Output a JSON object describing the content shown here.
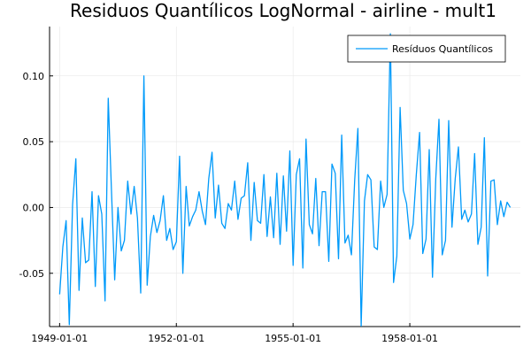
{
  "chart_data": {
    "type": "line",
    "title": "Residuos Quantílicos LogNormal - airline - mult1",
    "xlabel": "",
    "ylabel": "",
    "x_start": "1949-01",
    "x_ticks": [
      "1949-01-01",
      "1952-01-01",
      "1955-01-01",
      "1958-01-01"
    ],
    "y_ticks": [
      -0.05,
      0.0,
      0.05,
      0.1
    ],
    "y_tick_labels": [
      "-0.05",
      "0.00",
      "0.05",
      "0.10"
    ],
    "ylim": [
      -0.0905,
      0.1375
    ],
    "grid": true,
    "legend_position": "top-right",
    "series": [
      {
        "name": "Resíduos Quantílicos",
        "color": "#009AFA",
        "values": [
          -0.066,
          -0.03,
          -0.01,
          -0.089,
          0.002,
          0.037,
          -0.063,
          -0.008,
          -0.042,
          -0.04,
          0.012,
          -0.06,
          0.009,
          -0.005,
          -0.071,
          0.083,
          0.012,
          -0.055,
          0.0,
          -0.033,
          -0.025,
          0.02,
          -0.005,
          0.016,
          -0.008,
          -0.065,
          0.1,
          -0.059,
          -0.022,
          -0.006,
          -0.019,
          -0.01,
          0.009,
          -0.025,
          -0.016,
          -0.032,
          -0.026,
          0.039,
          -0.05,
          0.016,
          -0.014,
          -0.007,
          -0.002,
          0.012,
          -0.003,
          -0.013,
          0.022,
          0.042,
          -0.008,
          0.017,
          -0.012,
          -0.016,
          0.003,
          -0.002,
          0.02,
          -0.009,
          0.007,
          0.009,
          0.034,
          -0.025,
          0.019,
          -0.01,
          -0.012,
          0.025,
          -0.022,
          0.008,
          -0.023,
          0.026,
          -0.028,
          0.024,
          -0.018,
          0.043,
          -0.044,
          0.025,
          0.037,
          -0.046,
          0.052,
          -0.013,
          -0.02,
          0.022,
          -0.029,
          0.012,
          0.012,
          -0.041,
          0.033,
          0.026,
          -0.039,
          0.055,
          -0.027,
          -0.021,
          -0.036,
          0.021,
          0.06,
          -0.09,
          0.005,
          0.025,
          0.021,
          -0.03,
          -0.032,
          0.02,
          0.0,
          0.01,
          0.132,
          -0.057,
          -0.037,
          0.076,
          0.013,
          0.003,
          -0.024,
          -0.013,
          0.025,
          0.057,
          -0.035,
          -0.024,
          0.044,
          -0.053,
          0.022,
          0.067,
          -0.036,
          -0.025,
          0.066,
          -0.015,
          0.022,
          0.046,
          -0.009,
          -0.002,
          -0.011,
          -0.005,
          0.041,
          -0.028,
          -0.015,
          0.053,
          -0.052,
          0.02,
          0.021,
          -0.013,
          0.005,
          -0.007,
          0.004,
          0.0
        ]
      }
    ]
  }
}
